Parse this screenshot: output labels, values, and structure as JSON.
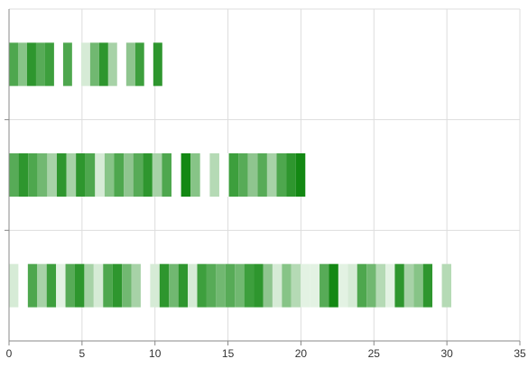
{
  "chart_data": {
    "type": "bar",
    "orientation": "horizontal",
    "stacked": true,
    "xlim": [
      0,
      35
    ],
    "x_ticks": [
      "0",
      "5",
      "10",
      "15",
      "20",
      "25",
      "30",
      "35"
    ],
    "grid": true,
    "legend": "none",
    "rows": [
      {
        "total": 10.5,
        "segments": [
          {
            "v": 0.6,
            "c": "#4ea74e"
          },
          {
            "v": 0.6,
            "c": "#87c487"
          },
          {
            "v": 0.6,
            "c": "#2e962e"
          },
          {
            "v": 0.6,
            "c": "#57ab57"
          },
          {
            "v": 0.6,
            "c": "#3d9f3d"
          },
          {
            "v": 0.6,
            "c": "#ffffff"
          },
          {
            "v": 0.6,
            "c": "#4ea74e"
          },
          {
            "v": 0.6,
            "c": "#ffffff"
          },
          {
            "v": 0.6,
            "c": "#d6ebd6"
          },
          {
            "v": 0.6,
            "c": "#71b871"
          },
          {
            "v": 0.6,
            "c": "#2e962e"
          },
          {
            "v": 0.6,
            "c": "#a7d2a7"
          },
          {
            "v": 0.6,
            "c": "#ffffff"
          },
          {
            "v": 0.6,
            "c": "#8fc58f"
          },
          {
            "v": 0.6,
            "c": "#3d9f3d"
          },
          {
            "v": 0.6,
            "c": "#ffffff"
          },
          {
            "v": 0.6,
            "c": "#2e962e"
          }
        ]
      },
      {
        "total": 20.3,
        "segments": [
          {
            "v": 0.6,
            "c": "#57ab57"
          },
          {
            "v": 0.6,
            "c": "#2e962e"
          },
          {
            "v": 0.6,
            "c": "#4ea74e"
          },
          {
            "v": 0.6,
            "c": "#71b871"
          },
          {
            "v": 0.6,
            "c": "#a7d2a7"
          },
          {
            "v": 0.6,
            "c": "#2e962e"
          },
          {
            "v": 0.6,
            "c": "#a7d2a7"
          },
          {
            "v": 0.6,
            "c": "#2e962e"
          },
          {
            "v": 0.6,
            "c": "#4ea74e"
          },
          {
            "v": 0.6,
            "c": "#d6ebd6"
          },
          {
            "v": 0.6,
            "c": "#87c487"
          },
          {
            "v": 0.6,
            "c": "#4ea74e"
          },
          {
            "v": 0.6,
            "c": "#8fc58f"
          },
          {
            "v": 0.6,
            "c": "#57ab57"
          },
          {
            "v": 0.6,
            "c": "#2e962e"
          },
          {
            "v": 0.6,
            "c": "#a7d2a7"
          },
          {
            "v": 0.6,
            "c": "#4ea74e"
          },
          {
            "v": 0.6,
            "c": "#ffffff"
          },
          {
            "v": 0.6,
            "c": "#138813"
          },
          {
            "v": 0.6,
            "c": "#87c487"
          },
          {
            "v": 0.6,
            "c": "#ffffff"
          },
          {
            "v": 0.6,
            "c": "#b5dab5"
          },
          {
            "v": 0.6,
            "c": "#ffffff"
          },
          {
            "v": 0.6,
            "c": "#3d9f3d"
          },
          {
            "v": 0.6,
            "c": "#57ab57"
          },
          {
            "v": 0.6,
            "c": "#8fc58f"
          },
          {
            "v": 0.6,
            "c": "#57ab57"
          },
          {
            "v": 0.6,
            "c": "#a7d2a7"
          },
          {
            "v": 0.6,
            "c": "#4ea74e"
          },
          {
            "v": 0.6,
            "c": "#2e962e"
          },
          {
            "v": 0.6,
            "c": "#138813"
          }
        ]
      },
      {
        "total": 30.3,
        "segments": [
          {
            "v": 0.6,
            "c": "#d6ebd6"
          },
          {
            "v": 0.6,
            "c": "#ffffff"
          },
          {
            "v": 0.6,
            "c": "#4ea74e"
          },
          {
            "v": 0.6,
            "c": "#a7d2a7"
          },
          {
            "v": 0.6,
            "c": "#3d9f3d"
          },
          {
            "v": 0.6,
            "c": "#e3f2e3"
          },
          {
            "v": 0.6,
            "c": "#57ab57"
          },
          {
            "v": 0.6,
            "c": "#2e962e"
          },
          {
            "v": 0.6,
            "c": "#a7d2a7"
          },
          {
            "v": 0.6,
            "c": "#d6ebd6"
          },
          {
            "v": 0.6,
            "c": "#4ea74e"
          },
          {
            "v": 0.6,
            "c": "#2e962e"
          },
          {
            "v": 0.6,
            "c": "#71b871"
          },
          {
            "v": 0.6,
            "c": "#a7d2a7"
          },
          {
            "v": 0.6,
            "c": "#ffffff"
          },
          {
            "v": 0.6,
            "c": "#d6ebd6"
          },
          {
            "v": 0.6,
            "c": "#2e962e"
          },
          {
            "v": 0.6,
            "c": "#71b871"
          },
          {
            "v": 0.6,
            "c": "#2e962e"
          },
          {
            "v": 0.6,
            "c": "#d6ebd6"
          },
          {
            "v": 0.6,
            "c": "#3d9f3d"
          },
          {
            "v": 0.6,
            "c": "#57ab57"
          },
          {
            "v": 0.6,
            "c": "#71b871"
          },
          {
            "v": 0.6,
            "c": "#57ab57"
          },
          {
            "v": 0.6,
            "c": "#71b871"
          },
          {
            "v": 0.6,
            "c": "#3d9f3d"
          },
          {
            "v": 0.6,
            "c": "#2e962e"
          },
          {
            "v": 0.6,
            "c": "#8fc58f"
          },
          {
            "v": 0.6,
            "c": "#d6ebd6"
          },
          {
            "v": 0.6,
            "c": "#87c487"
          },
          {
            "v": 0.6,
            "c": "#b5dab5"
          },
          {
            "v": 0.6,
            "c": "#e3f2e3"
          },
          {
            "v": 0.6,
            "c": "#e3f2e3"
          },
          {
            "v": 0.6,
            "c": "#57ab57"
          },
          {
            "v": 0.6,
            "c": "#138813"
          },
          {
            "v": 0.6,
            "c": "#e3f2e3"
          },
          {
            "v": 0.6,
            "c": "#d6ebd6"
          },
          {
            "v": 0.6,
            "c": "#4ea74e"
          },
          {
            "v": 0.6,
            "c": "#71b871"
          },
          {
            "v": 0.6,
            "c": "#b5dab5"
          },
          {
            "v": 0.6,
            "c": "#e3f2e3"
          },
          {
            "v": 0.6,
            "c": "#2e962e"
          },
          {
            "v": 0.6,
            "c": "#a7d2a7"
          },
          {
            "v": 0.6,
            "c": "#87c487"
          },
          {
            "v": 0.6,
            "c": "#2e962e"
          },
          {
            "v": 0.6,
            "c": "#ffffff"
          },
          {
            "v": 0.6,
            "c": "#b5dab5"
          }
        ]
      }
    ],
    "colors": {
      "grid": "#dddddd",
      "axis": "#888888",
      "tick_text": "#333333"
    }
  }
}
